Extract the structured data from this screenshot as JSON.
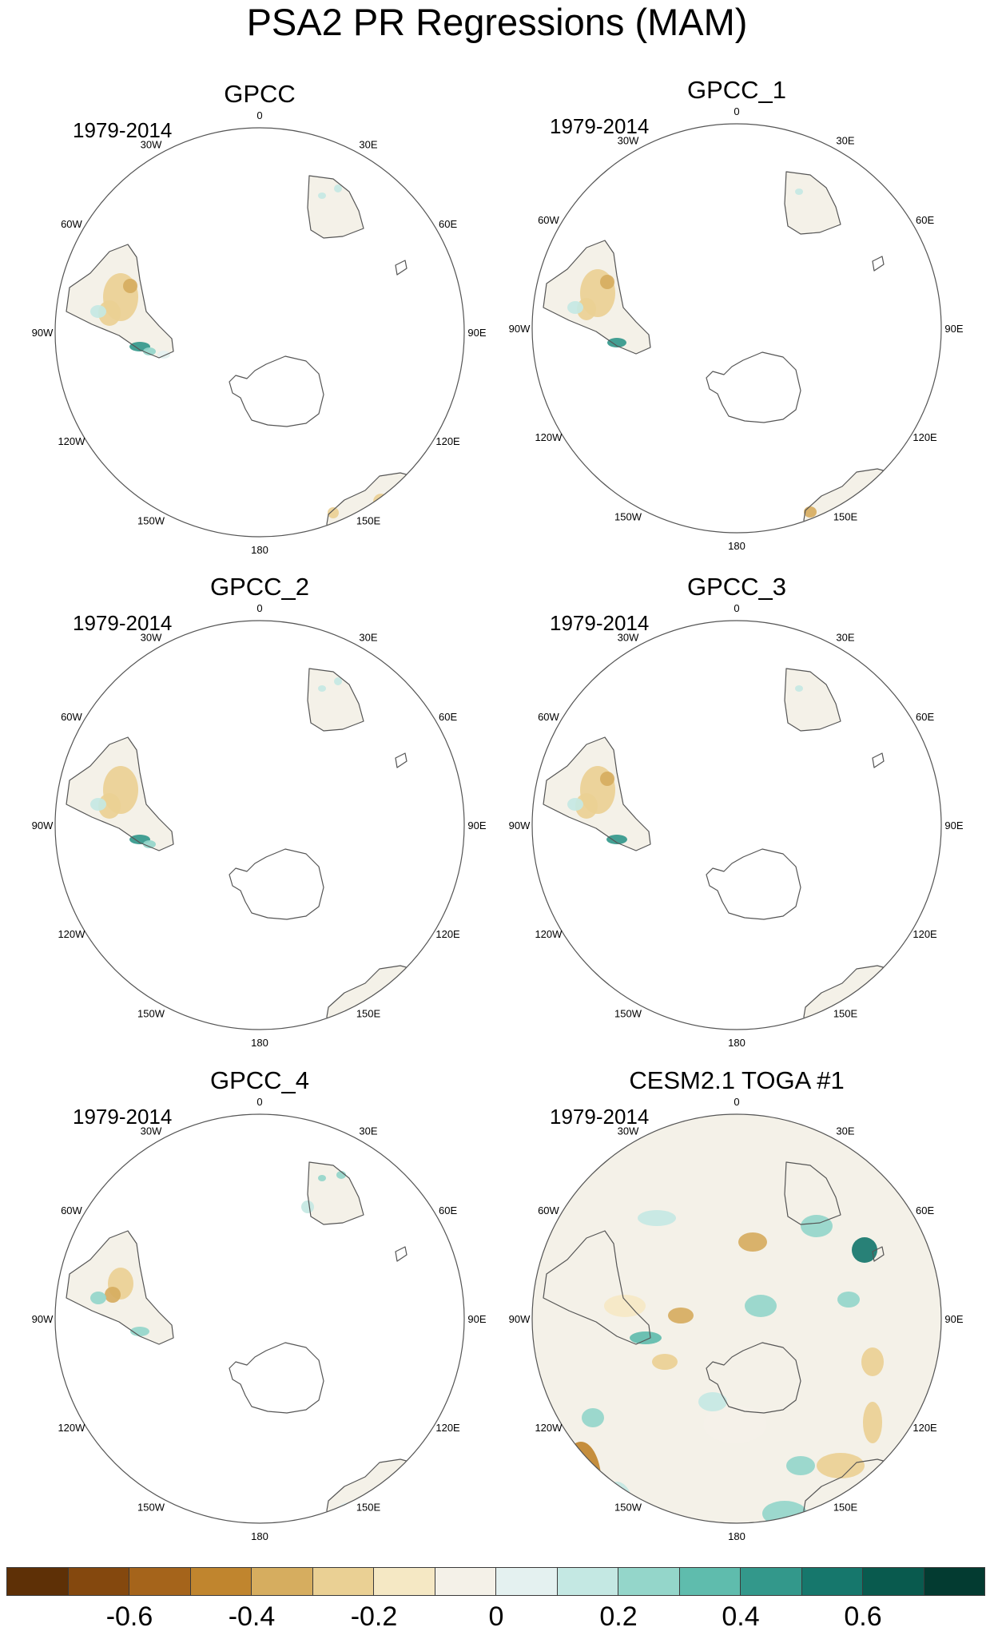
{
  "figure": {
    "title": "PSA2 PR Regressions (MAM)"
  },
  "panels": [
    {
      "title": "GPCC",
      "period": "1979-2014",
      "type": "obs"
    },
    {
      "title": "GPCC_1",
      "period": "1979-2014",
      "type": "obs"
    },
    {
      "title": "GPCC_2",
      "period": "1979-2014",
      "type": "obs"
    },
    {
      "title": "GPCC_3",
      "period": "1979-2014",
      "type": "obs"
    },
    {
      "title": "GPCC_4",
      "period": "1979-2014",
      "type": "obs"
    },
    {
      "title": "CESM2.1 TOGA #1",
      "period": "1979-2014",
      "type": "model"
    }
  ],
  "longitude_labels": [
    "0",
    "30E",
    "60E",
    "90E",
    "120E",
    "150E",
    "180",
    "150W",
    "120W",
    "90W",
    "60W",
    "30W"
  ],
  "colorbar": {
    "colors": [
      "#5e3006",
      "#84480e",
      "#a5641b",
      "#c0852e",
      "#d6ad5f",
      "#ead094",
      "#f5e8c4",
      "#f4f1e8",
      "#e4f1f0",
      "#c4e8e3",
      "#94d6ca",
      "#5fbcad",
      "#33988b",
      "#16776c",
      "#095a4e",
      "#033b31"
    ],
    "tick_labels": [
      "-0.6",
      "-0.4",
      "-0.2",
      "0",
      "0.2",
      "0.4",
      "0.6"
    ],
    "tick_values": [
      -0.6,
      -0.4,
      -0.2,
      0,
      0.2,
      0.4,
      0.6
    ]
  }
}
